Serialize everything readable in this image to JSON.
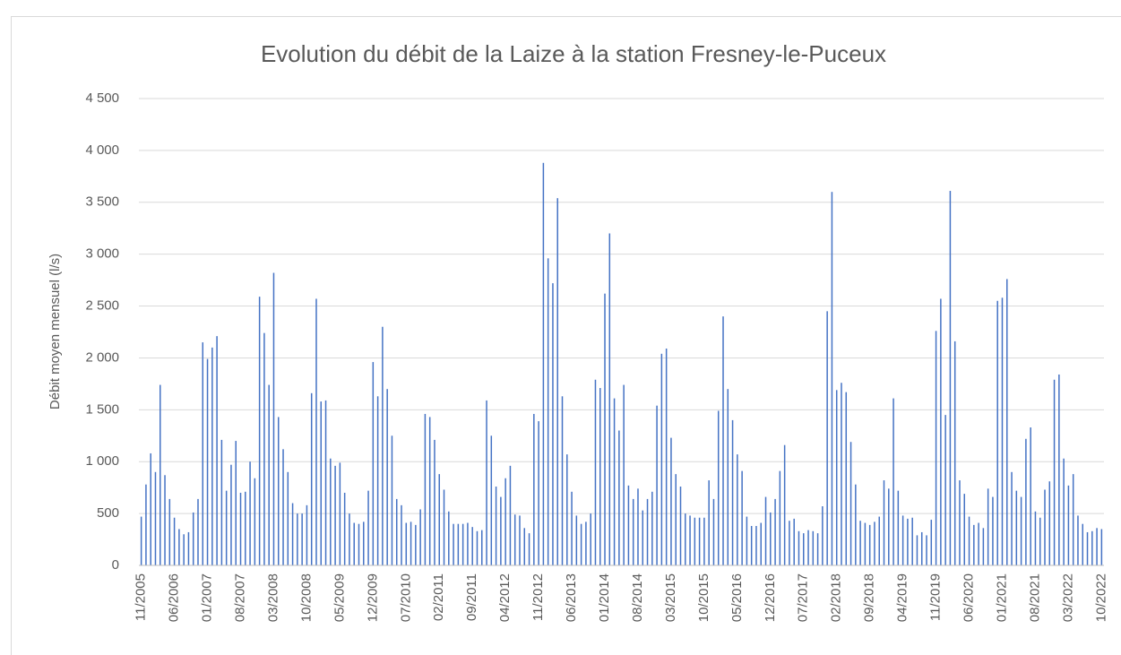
{
  "chart_data": {
    "type": "bar",
    "title": "Evolution du débit de la Laize à la station Fresney-le-Puceux",
    "y_label": "Débit moyen mensuel (l/s)",
    "color": "#4472c4",
    "grid": true,
    "ylim": [
      0,
      4500
    ],
    "yticks": [
      0,
      {
        "value": 500,
        "label": "500"
      },
      {
        "value": 1000,
        "label": "1 000"
      },
      {
        "value": 1500,
        "label": "1 500"
      },
      {
        "value": 2000,
        "label": "2 000"
      },
      {
        "value": 2500,
        "label": "2 500"
      },
      {
        "value": 3000,
        "label": "3 000"
      },
      {
        "value": 3500,
        "label": "3 500"
      },
      {
        "value": 4000,
        "label": "4 000"
      },
      {
        "value": 4500,
        "label": "4 500"
      }
    ],
    "categories": [
      "11/2005",
      null,
      null,
      null,
      null,
      null,
      null,
      "06/2006",
      null,
      null,
      null,
      null,
      null,
      null,
      "01/2007",
      null,
      null,
      null,
      null,
      null,
      null,
      "08/2007",
      null,
      null,
      null,
      null,
      null,
      null,
      "03/2008",
      null,
      null,
      null,
      null,
      null,
      null,
      "10/2008",
      null,
      null,
      null,
      null,
      null,
      null,
      "05/2009",
      null,
      null,
      null,
      null,
      null,
      null,
      "12/2009",
      null,
      null,
      null,
      null,
      null,
      null,
      "07/2010",
      null,
      null,
      null,
      null,
      null,
      null,
      "02/2011",
      null,
      null,
      null,
      null,
      null,
      null,
      "09/2011",
      null,
      null,
      null,
      null,
      null,
      null,
      "04/2012",
      null,
      null,
      null,
      null,
      null,
      null,
      "11/2012",
      null,
      null,
      null,
      null,
      null,
      null,
      "06/2013",
      null,
      null,
      null,
      null,
      null,
      null,
      "01/2014",
      null,
      null,
      null,
      null,
      null,
      null,
      "08/2014",
      null,
      null,
      null,
      null,
      null,
      null,
      "03/2015",
      null,
      null,
      null,
      null,
      null,
      null,
      "10/2015",
      null,
      null,
      null,
      null,
      null,
      null,
      "05/2016",
      null,
      null,
      null,
      null,
      null,
      null,
      "12/2016",
      null,
      null,
      null,
      null,
      null,
      null,
      "07/2017",
      null,
      null,
      null,
      null,
      null,
      null,
      "02/2018",
      null,
      null,
      null,
      null,
      null,
      null,
      "09/2018",
      null,
      null,
      null,
      null,
      null,
      null,
      "04/2019",
      null,
      null,
      null,
      null,
      null,
      null,
      "11/2019",
      null,
      null,
      null,
      null,
      null,
      null,
      "06/2020",
      null,
      null,
      null,
      null,
      null,
      null,
      "01/2021",
      null,
      null,
      null,
      null,
      null,
      null,
      "08/2021",
      null,
      null,
      null,
      null,
      null,
      null,
      "03/2022",
      null,
      null,
      null,
      null,
      null,
      null,
      "10/2022"
    ],
    "values": [
      470,
      780,
      1080,
      900,
      1740,
      870,
      640,
      460,
      350,
      300,
      320,
      510,
      640,
      2150,
      1990,
      2100,
      2210,
      1210,
      720,
      970,
      1200,
      700,
      710,
      1000,
      840,
      2590,
      2240,
      1740,
      2820,
      1430,
      1120,
      900,
      600,
      500,
      500,
      580,
      1660,
      2570,
      1580,
      1590,
      1030,
      960,
      990,
      700,
      500,
      410,
      400,
      420,
      720,
      1960,
      1630,
      2300,
      1700,
      1250,
      640,
      580,
      410,
      420,
      390,
      540,
      1460,
      1430,
      1210,
      880,
      730,
      520,
      400,
      400,
      400,
      410,
      370,
      330,
      340,
      1590,
      1250,
      760,
      660,
      840,
      960,
      490,
      480,
      360,
      310,
      1460,
      1390,
      3880,
      2960,
      2720,
      3540,
      1630,
      1070,
      710,
      480,
      400,
      420,
      500,
      1790,
      1710,
      2620,
      3200,
      1610,
      1300,
      1740,
      770,
      640,
      740,
      530,
      640,
      710,
      1540,
      2040,
      2090,
      1230,
      880,
      760,
      500,
      480,
      460,
      460,
      460,
      820,
      640,
      1490,
      2400,
      1700,
      1400,
      1070,
      910,
      470,
      380,
      380,
      410,
      660,
      510,
      640,
      910,
      1160,
      430,
      450,
      330,
      310,
      340,
      330,
      310,
      570,
      2450,
      3600,
      1690,
      1760,
      1670,
      1190,
      780,
      430,
      410,
      390,
      420,
      470,
      820,
      740,
      1610,
      720,
      480,
      450,
      460,
      290,
      320,
      290,
      440,
      2260,
      2570,
      1450,
      3610,
      2160,
      820,
      690,
      470,
      390,
      410,
      360,
      740,
      660,
      2550,
      2580,
      2760,
      900,
      720,
      660,
      1220,
      1330,
      520,
      460,
      730,
      810,
      1790,
      1840,
      1030,
      770,
      880,
      480,
      400,
      320,
      330,
      360,
      350
    ]
  }
}
